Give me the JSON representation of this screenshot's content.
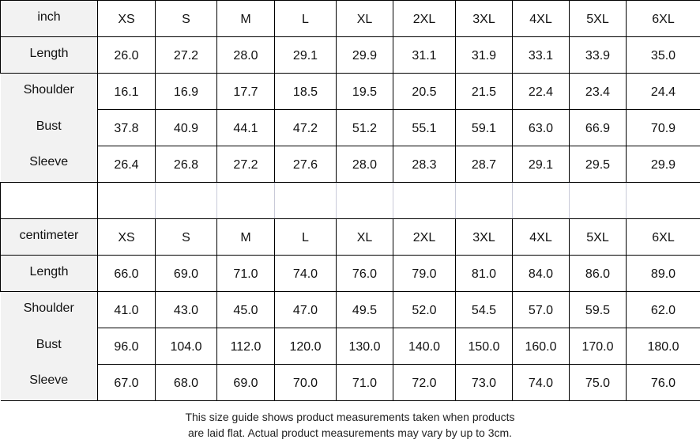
{
  "sizes": [
    "XS",
    "S",
    "M",
    "L",
    "XL",
    "2XL",
    "3XL",
    "4XL",
    "5XL",
    "6XL"
  ],
  "tables": [
    {
      "unit": "inch",
      "rows": [
        {
          "label": "Length",
          "values": [
            "26.0",
            "27.2",
            "28.0",
            "29.1",
            "29.9",
            "31.1",
            "31.9",
            "33.1",
            "33.9",
            "35.0"
          ]
        },
        {
          "label": "Shoulder",
          "values": [
            "16.1",
            "16.9",
            "17.7",
            "18.5",
            "19.5",
            "20.5",
            "21.5",
            "22.4",
            "23.4",
            "24.4"
          ]
        },
        {
          "label": "Bust",
          "values": [
            "37.8",
            "40.9",
            "44.1",
            "47.2",
            "51.2",
            "55.1",
            "59.1",
            "63.0",
            "66.9",
            "70.9"
          ]
        },
        {
          "label": "Sleeve",
          "values": [
            "26.4",
            "26.8",
            "27.2",
            "27.6",
            "28.0",
            "28.3",
            "28.7",
            "29.1",
            "29.5",
            "29.9"
          ]
        }
      ]
    },
    {
      "unit": "centimeter",
      "rows": [
        {
          "label": "Length",
          "values": [
            "66.0",
            "69.0",
            "71.0",
            "74.0",
            "76.0",
            "79.0",
            "81.0",
            "84.0",
            "86.0",
            "89.0"
          ]
        },
        {
          "label": "Shoulder",
          "values": [
            "41.0",
            "43.0",
            "45.0",
            "47.0",
            "49.5",
            "52.0",
            "54.5",
            "57.0",
            "59.5",
            "62.0"
          ]
        },
        {
          "label": "Bust",
          "values": [
            "96.0",
            "104.0",
            "112.0",
            "120.0",
            "130.0",
            "140.0",
            "150.0",
            "160.0",
            "170.0",
            "180.0"
          ]
        },
        {
          "label": "Sleeve",
          "values": [
            "67.0",
            "68.0",
            "69.0",
            "70.0",
            "71.0",
            "72.0",
            "73.0",
            "74.0",
            "75.0",
            "76.0"
          ]
        }
      ]
    }
  ],
  "note": {
    "line1": "This size guide shows product measurements taken when products",
    "line2": "are laid flat. Actual product measurements may vary by up to 3cm."
  }
}
